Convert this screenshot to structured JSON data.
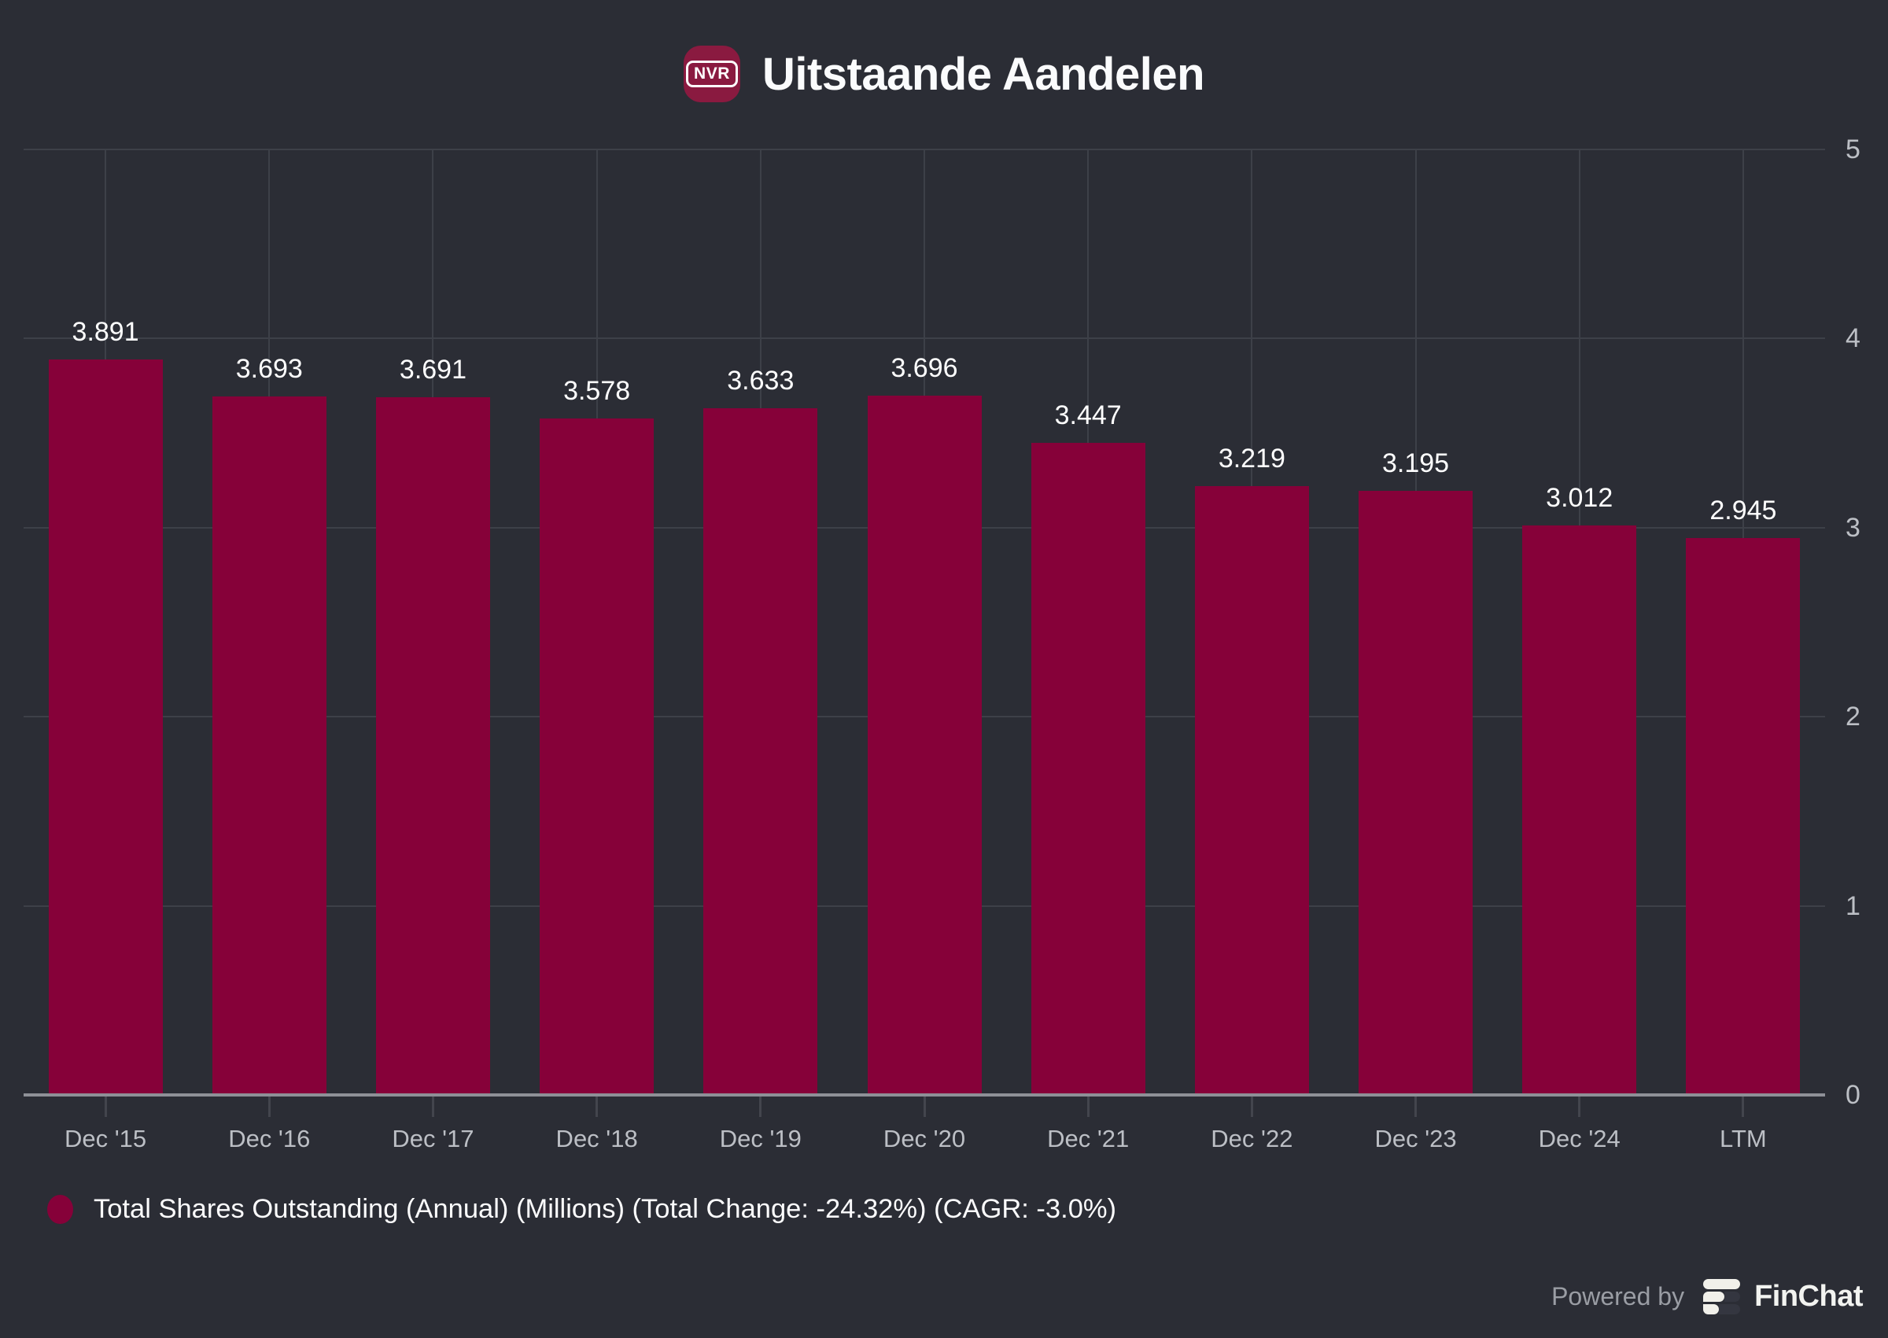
{
  "header": {
    "ticker_badge": "NVR",
    "title": "Uitstaande Aandelen"
  },
  "chart_data": {
    "type": "bar",
    "title": "Uitstaande Aandelen",
    "categories": [
      "Dec '15",
      "Dec '16",
      "Dec '17",
      "Dec '18",
      "Dec '19",
      "Dec '20",
      "Dec '21",
      "Dec '22",
      "Dec '23",
      "Dec '24",
      "LTM"
    ],
    "values": [
      3.891,
      3.693,
      3.691,
      3.578,
      3.633,
      3.696,
      3.447,
      3.219,
      3.195,
      3.012,
      2.945
    ],
    "value_labels": [
      "3.891",
      "3.693",
      "3.691",
      "3.578",
      "3.633",
      "3.696",
      "3.447",
      "3.219",
      "3.195",
      "3.012",
      "2.945"
    ],
    "series_name": "Total Shares Outstanding (Annual) (Millions)",
    "total_change": "-24.32%",
    "cagr": "-3.0%",
    "xlabel": "",
    "ylabel": "",
    "ylim": [
      0,
      5
    ],
    "y_ticks": [
      0,
      1,
      2,
      3,
      4,
      5
    ],
    "y_axis_side": "right",
    "grid": true,
    "bar_color": "#860139",
    "legend_position": "bottom-left"
  },
  "legend": {
    "label": "Total Shares Outstanding (Annual) (Millions) (Total Change: -24.32%) (CAGR: -3.0%)",
    "marker_color": "#860139"
  },
  "footer": {
    "powered_by": "Powered by",
    "brand": "FinChat"
  },
  "colors": {
    "background": "#2b2d35",
    "bar": "#860139",
    "badge_background": "#8a1a40",
    "grid": "#3d4048",
    "axis_line": "#8e9097",
    "tick_label": "#bcbfc5",
    "value_label": "#ffffff",
    "legend_text": "#fcfcfd",
    "powered_by_text": "#9a9da4",
    "brand_text": "#f2f3f0"
  }
}
